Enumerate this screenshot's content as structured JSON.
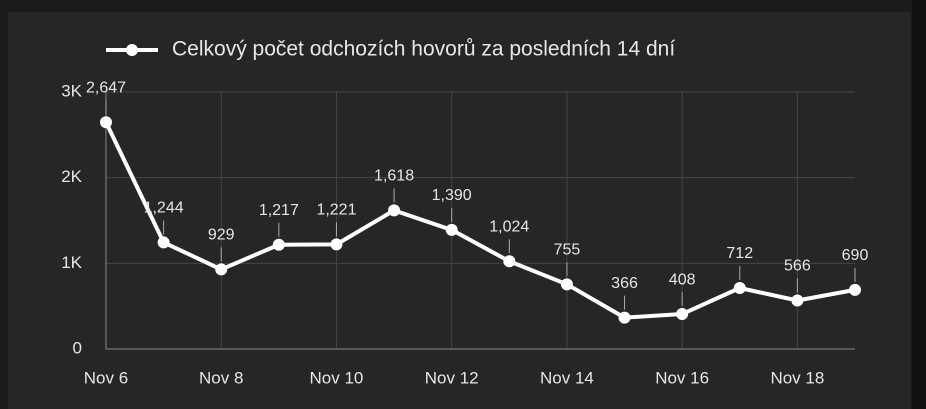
{
  "chart_data": {
    "type": "line",
    "categories": [
      "Nov 6",
      null,
      "Nov 8",
      null,
      "Nov 10",
      null,
      "Nov 12",
      null,
      "Nov 14",
      null,
      "Nov 16",
      null,
      "Nov 18",
      null
    ],
    "series": [
      {
        "name": "Celkový počet odchozích hovorů za posledních 14 dní",
        "color": "#ffffff",
        "values": [
          2647,
          1244,
          929,
          1217,
          1221,
          1618,
          1390,
          1024,
          755,
          366,
          408,
          712,
          566,
          690
        ],
        "value_labels": [
          "2,647",
          "1,244",
          "929",
          "1,217",
          "1,221",
          "1,618",
          "1,390",
          "1,024",
          "755",
          "366",
          "408",
          "712",
          "566",
          "690"
        ]
      }
    ],
    "ylim": [
      0,
      3000
    ],
    "yticks": [
      {
        "value": 0,
        "label": "0"
      },
      {
        "value": 1000,
        "label": "1K"
      },
      {
        "value": 2000,
        "label": "2K"
      },
      {
        "value": 3000,
        "label": "3K"
      }
    ],
    "grid": true
  }
}
